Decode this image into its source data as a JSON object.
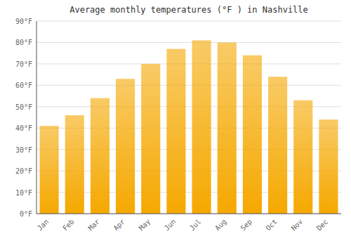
{
  "chart_data": {
    "type": "bar",
    "title": "Average monthly temperatures (°F ) in Nashville",
    "categories": [
      "Jan",
      "Feb",
      "Mar",
      "Apr",
      "May",
      "Jun",
      "Jul",
      "Aug",
      "Sep",
      "Oct",
      "Nov",
      "Dec"
    ],
    "values": [
      41,
      46,
      54,
      63,
      70,
      77,
      81,
      80,
      74,
      64,
      53,
      44
    ],
    "color": "#F5A800",
    "ylim": [
      0,
      90
    ],
    "yticks": [
      {
        "value": 0,
        "label": "0°F"
      },
      {
        "value": 10,
        "label": "10°F"
      },
      {
        "value": 20,
        "label": "20°F"
      },
      {
        "value": 30,
        "label": "30°F"
      },
      {
        "value": 40,
        "label": "40°F"
      },
      {
        "value": 50,
        "label": "50°F"
      },
      {
        "value": 60,
        "label": "60°F"
      },
      {
        "value": 70,
        "label": "70°F"
      },
      {
        "value": 80,
        "label": "80°F"
      },
      {
        "value": 90,
        "label": "90°F"
      }
    ],
    "grid": true
  }
}
